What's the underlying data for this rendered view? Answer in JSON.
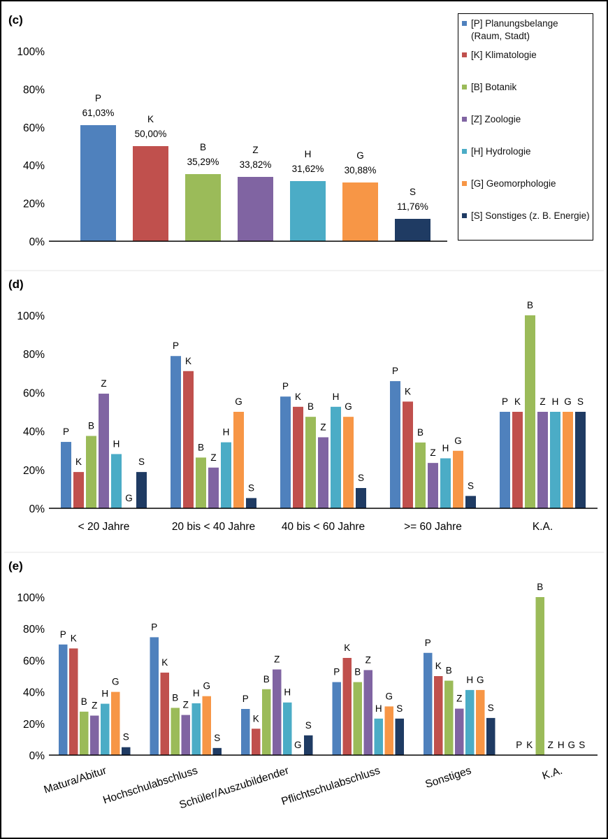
{
  "colors": {
    "P": "#4f81bd",
    "K": "#c0504d",
    "B": "#9bbb59",
    "Z": "#8064a2",
    "H": "#4bacc6",
    "G": "#f79646",
    "S": "#1f3b63"
  },
  "legend": [
    {
      "key": "P",
      "label": "[P] Planungsbelange (Raum, Stadt)"
    },
    {
      "key": "K",
      "label": "[K] Klimatologie"
    },
    {
      "key": "B",
      "label": "[B] Botanik"
    },
    {
      "key": "Z",
      "label": "[Z] Zoologie"
    },
    {
      "key": "H",
      "label": "[H] Hydrologie"
    },
    {
      "key": "G",
      "label": "[G] Geomorphologie"
    },
    {
      "key": "S",
      "label": "[S] Sonstiges (z. B. Energie)"
    }
  ],
  "chart_data": [
    {
      "panel_label": "(c)",
      "type": "bar",
      "ylim": [
        0,
        100
      ],
      "yticks": [
        "0%",
        "20%",
        "40%",
        "60%",
        "80%",
        "100%"
      ],
      "bars": [
        {
          "key": "P",
          "value": 61.03,
          "label": "61,03%"
        },
        {
          "key": "K",
          "value": 50.0,
          "label": "50,00%"
        },
        {
          "key": "B",
          "value": 35.29,
          "label": "35,29%"
        },
        {
          "key": "Z",
          "value": 33.82,
          "label": "33,82%"
        },
        {
          "key": "H",
          "value": 31.62,
          "label": "31,62%"
        },
        {
          "key": "G",
          "value": 30.88,
          "label": "30,88%"
        },
        {
          "key": "S",
          "value": 11.76,
          "label": "11,76%"
        }
      ]
    },
    {
      "panel_label": "(d)",
      "type": "bar",
      "ylim": [
        0,
        100
      ],
      "yticks": [
        "0%",
        "20%",
        "40%",
        "60%",
        "80%",
        "100%"
      ],
      "series_keys": [
        "P",
        "K",
        "B",
        "Z",
        "H",
        "G",
        "S"
      ],
      "categories": [
        "< 20 Jahre",
        "20 bis < 40 Jahre",
        "40 bis < 60 Jahre",
        ">= 60 Jahre",
        "K.A."
      ],
      "values": [
        [
          34.4,
          18.8,
          37.5,
          59.4,
          28.1,
          0,
          18.8
        ],
        [
          78.9,
          71.1,
          26.3,
          21.1,
          34.2,
          50.0,
          5.3
        ],
        [
          57.9,
          52.6,
          47.4,
          36.8,
          52.6,
          47.4,
          10.5
        ],
        [
          65.9,
          55.3,
          34.1,
          23.5,
          25.9,
          29.8,
          6.4
        ],
        [
          50.0,
          50.0,
          100.0,
          50.0,
          50.0,
          50.0,
          50.0
        ]
      ]
    },
    {
      "panel_label": "(e)",
      "type": "bar",
      "ylim": [
        0,
        100
      ],
      "yticks": [
        "0%",
        "20%",
        "40%",
        "60%",
        "80%",
        "100%"
      ],
      "series_keys": [
        "P",
        "K",
        "B",
        "Z",
        "H",
        "G",
        "S"
      ],
      "categories": [
        "Matura/Abitur",
        "Hochschulabschluss",
        "Schüler/Auszubildender",
        "Pflichtschulabschluss",
        "Sonstiges",
        "K.A."
      ],
      "values": [
        [
          70.0,
          67.5,
          27.5,
          25.0,
          32.5,
          40.0,
          5.0
        ],
        [
          74.6,
          52.2,
          29.9,
          25.4,
          32.8,
          37.3,
          4.5
        ],
        [
          29.2,
          16.7,
          41.7,
          54.2,
          33.3,
          0,
          12.5
        ],
        [
          46.2,
          61.5,
          46.2,
          53.8,
          23.1,
          30.8,
          23.1
        ],
        [
          64.7,
          50.0,
          47.1,
          29.4,
          41.2,
          41.2,
          23.5
        ],
        [
          0,
          0,
          100.0,
          0,
          0,
          0,
          0
        ]
      ]
    }
  ]
}
